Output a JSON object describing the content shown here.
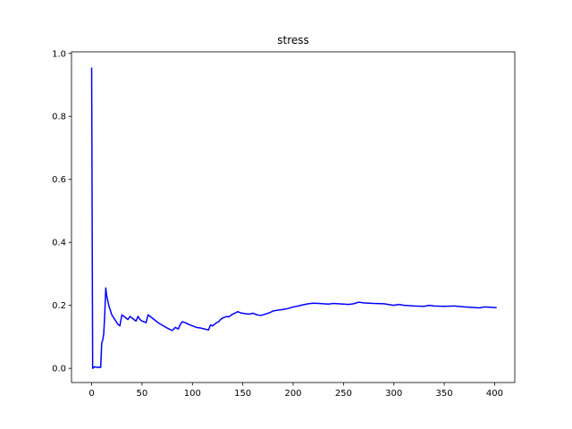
{
  "chart_data": {
    "type": "line",
    "title": "stress",
    "xlabel": "",
    "ylabel": "",
    "xlim": [
      -20,
      420
    ],
    "ylim": [
      -0.045,
      1.005
    ],
    "xticks": [
      0,
      50,
      100,
      150,
      200,
      250,
      300,
      350,
      400
    ],
    "yticks": [
      0.0,
      0.2,
      0.4,
      0.6,
      0.8,
      1.0
    ],
    "xtick_labels": [
      "0",
      "50",
      "100",
      "150",
      "200",
      "250",
      "300",
      "350",
      "400"
    ],
    "ytick_labels": [
      "0.0",
      "0.2",
      "0.4",
      "0.6",
      "0.8",
      "1.0"
    ],
    "grid": false,
    "legend": "none",
    "series": [
      {
        "color": "#0000ff",
        "x": [
          0,
          1,
          3,
          5,
          7,
          9,
          10,
          11,
          12,
          13,
          14,
          15,
          17,
          20,
          23,
          26,
          28,
          30,
          32,
          34,
          36,
          38,
          40,
          42,
          44,
          46,
          48,
          50,
          52,
          54,
          56,
          58,
          62,
          66,
          70,
          75,
          80,
          83,
          86,
          88,
          90,
          93,
          96,
          100,
          104,
          108,
          112,
          116,
          118,
          120,
          122,
          124,
          126,
          128,
          130,
          132,
          134,
          136,
          138,
          140,
          142,
          145,
          148,
          152,
          156,
          160,
          164,
          168,
          172,
          176,
          180,
          185,
          190,
          195,
          200,
          205,
          210,
          215,
          220,
          225,
          230,
          235,
          240,
          245,
          250,
          255,
          260,
          265,
          270,
          275,
          280,
          290,
          300,
          305,
          310,
          320,
          330,
          335,
          340,
          350,
          360,
          370,
          380,
          385,
          390,
          395,
          400,
          402
        ],
        "y": [
          0.955,
          0.0,
          0.005,
          0.003,
          0.004,
          0.003,
          0.08,
          0.09,
          0.11,
          0.17,
          0.255,
          0.23,
          0.2,
          0.17,
          0.155,
          0.14,
          0.135,
          0.17,
          0.165,
          0.16,
          0.155,
          0.165,
          0.16,
          0.155,
          0.15,
          0.165,
          0.155,
          0.15,
          0.148,
          0.145,
          0.17,
          0.165,
          0.155,
          0.145,
          0.137,
          0.128,
          0.12,
          0.13,
          0.125,
          0.14,
          0.148,
          0.145,
          0.14,
          0.135,
          0.13,
          0.128,
          0.125,
          0.122,
          0.138,
          0.135,
          0.14,
          0.145,
          0.148,
          0.155,
          0.16,
          0.162,
          0.165,
          0.163,
          0.168,
          0.172,
          0.175,
          0.18,
          0.176,
          0.174,
          0.172,
          0.175,
          0.17,
          0.168,
          0.172,
          0.176,
          0.182,
          0.185,
          0.187,
          0.19,
          0.195,
          0.198,
          0.202,
          0.205,
          0.207,
          0.206,
          0.205,
          0.204,
          0.206,
          0.205,
          0.204,
          0.203,
          0.205,
          0.21,
          0.208,
          0.207,
          0.206,
          0.205,
          0.2,
          0.203,
          0.2,
          0.198,
          0.197,
          0.2,
          0.198,
          0.197,
          0.198,
          0.195,
          0.193,
          0.192,
          0.195,
          0.194,
          0.193,
          0.193
        ]
      }
    ]
  }
}
